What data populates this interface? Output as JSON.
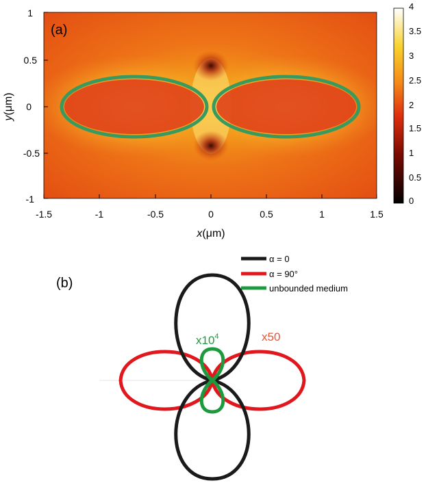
{
  "panel_a": {
    "label": "(a)",
    "x_ticks": [
      "-1.5",
      "-1",
      "-0.5",
      "0",
      "0.5",
      "1",
      "1.5"
    ],
    "y_ticks": [
      "1",
      "0.5",
      "0",
      "-0.5",
      "-1"
    ],
    "x_label_italic": "x",
    "x_label_unit": "(μm)",
    "y_label_italic": "y",
    "y_label_unit": "(μm)",
    "colorbar_ticks": [
      "4",
      "3.5",
      "3",
      "2.5",
      "2",
      "1.5",
      "1",
      "0.5",
      "0"
    ],
    "outline_color": "#3a9a5e"
  },
  "panel_b": {
    "label": "(b)",
    "legend": [
      {
        "text": "α = 0",
        "color": "#1a1a1a"
      },
      {
        "text": "α = 90°",
        "color": "#e0181e"
      },
      {
        "text": "unbounded medium",
        "color": "#1e9a3e"
      }
    ],
    "scale_green": "x10",
    "scale_green_exp": "4",
    "scale_red": "x50",
    "colors": {
      "black": "#1a1a1a",
      "red": "#e0181e",
      "green": "#1e9a3e",
      "red_text": "#f05030"
    }
  }
}
